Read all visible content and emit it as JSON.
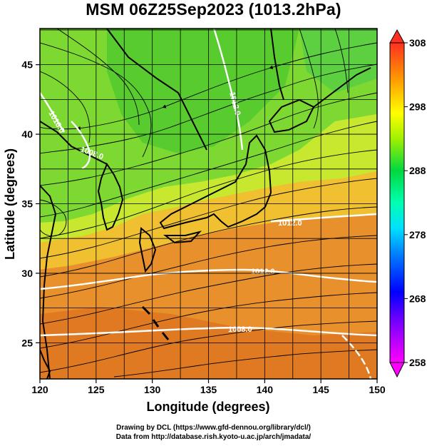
{
  "title": "MSM 06Z25Sep2023 (1013.2hPa)",
  "credits": {
    "line1": "Drawing by DCL (https://www.gfd-dennou.org/library/dcl/)",
    "line2": "Data from http://database.rish.kyoto-u.ac.jp/arch/jmadata/"
  },
  "chart_data": {
    "type": "heatmap",
    "title": "MSM 06Z25Sep2023 (1013.2hPa)",
    "xlabel": "Longitude (degrees)",
    "ylabel": "Latitude  (degrees)",
    "xlim": [
      120,
      150
    ],
    "ylim": [
      22.4,
      47.6
    ],
    "x_ticks": [
      120,
      125,
      130,
      135,
      140,
      145,
      150
    ],
    "y_ticks": [
      25,
      30,
      35,
      40,
      45
    ],
    "grid": true,
    "colorbar": {
      "min": 258,
      "max": 308,
      "ticks": [
        258,
        268,
        278,
        288,
        298,
        308
      ],
      "colors": [
        "#ff00ff",
        "#0000ff",
        "#00a0ff",
        "#00ffc0",
        "#00d000",
        "#c0ff00",
        "#ffff00",
        "#ffa000",
        "#ff5000",
        "#ff2020"
      ]
    },
    "contour_labels": [
      "1012.0",
      "1008.0",
      "1012.0",
      "1008.0",
      "1012.0",
      "1016.0"
    ],
    "colors": {
      "land_outline": "#000000",
      "contour": "#ffffff",
      "streamline": "#000000"
    }
  }
}
